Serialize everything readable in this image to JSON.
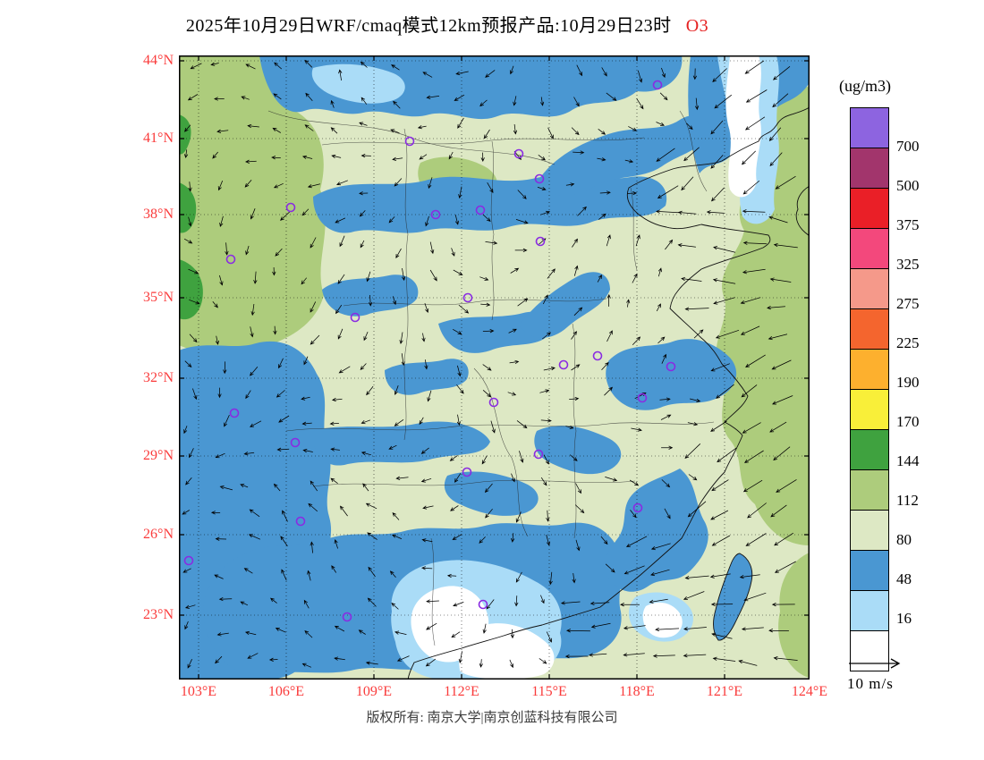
{
  "title": {
    "main": "2025年10月29日WRF/cmaq模式12km预报产品:10月29日23时",
    "pollutant": "O3"
  },
  "map": {
    "lat_labels": [
      "44°N",
      "41°N",
      "38°N",
      "35°N",
      "32°N",
      "29°N",
      "26°N",
      "23°N"
    ],
    "lon_labels": [
      "103°E",
      "106°E",
      "109°E",
      "112°E",
      "115°E",
      "118°E",
      "121°E",
      "124°E"
    ]
  },
  "legend": {
    "unit": "(ug/m3)",
    "tick_labels": [
      "700",
      "500",
      "375",
      "325",
      "275",
      "225",
      "190",
      "170",
      "144",
      "112",
      "80",
      "48",
      "16"
    ],
    "colors": [
      "#8d64e0",
      "#a2356c",
      "#ea1f27",
      "#f3487c",
      "#f5998a",
      "#f4652e",
      "#fdb02e",
      "#f9ef39",
      "#3fa23f",
      "#adcc7c",
      "#dde8c4",
      "#4a97d2",
      "#aadcf7",
      "#ffffff"
    ]
  },
  "wind_scale": {
    "label": "10 m/s"
  },
  "footer": {
    "text": "版权所有: 南京大学|南京创蓝科技有限公司"
  }
}
